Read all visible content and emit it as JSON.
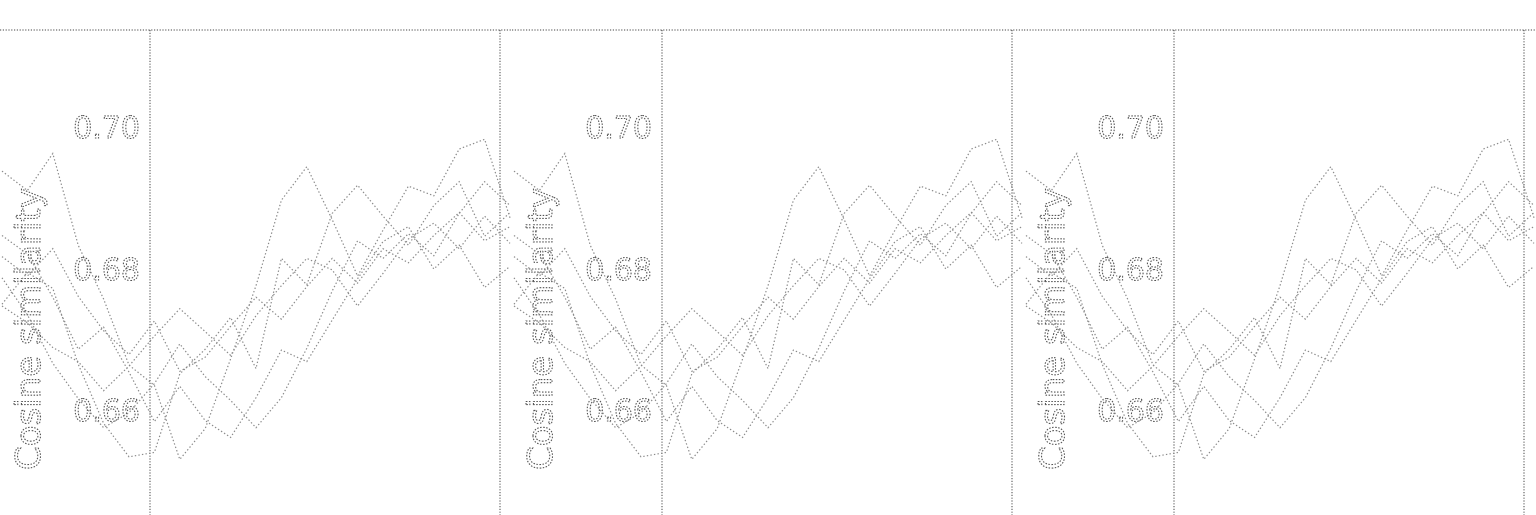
{
  "chart_data": [
    {
      "type": "line",
      "ylabel": "Cosine similarity",
      "yticks": [
        0.66,
        0.68,
        0.7
      ],
      "ylim": [
        0.6535,
        0.7085
      ],
      "grid": false,
      "legend": "none",
      "series_color": "#8a8a8a",
      "series": [
        {
          "values": [
            0.6925,
            0.6903,
            0.6945,
            0.6841,
            0.678,
            0.6705,
            0.6682,
            0.6598,
            0.6633,
            0.6712,
            0.6795,
            0.6892,
            0.693,
            0.687,
            0.6806,
            0.6858,
            0.6908,
            0.6897,
            0.695,
            0.6961,
            0.6872
          ]
        },
        {
          "values": [
            0.6774,
            0.681,
            0.6792,
            0.6706,
            0.6639,
            0.6601,
            0.6606,
            0.6695,
            0.6723,
            0.6759,
            0.6701,
            0.6826,
            0.6796,
            0.6877,
            0.6909,
            0.6874,
            0.6841,
            0.6886,
            0.6913,
            0.6851,
            0.6878
          ]
        },
        {
          "values": [
            0.6804,
            0.6762,
            0.6707,
            0.6667,
            0.6634,
            0.6651,
            0.6684,
            0.6729,
            0.6692,
            0.6665,
            0.6634,
            0.6668,
            0.6724,
            0.6789,
            0.6846,
            0.6826,
            0.6854,
            0.6829,
            0.6877,
            0.6913,
            0.6886
          ]
        },
        {
          "values": [
            0.6852,
            0.6831,
            0.6782,
            0.6723,
            0.6748,
            0.6697,
            0.6641,
            0.6681,
            0.6642,
            0.6623,
            0.6668,
            0.6722,
            0.6709,
            0.6756,
            0.6803,
            0.6845,
            0.6862,
            0.6814,
            0.6841,
            0.6793,
            0.6817
          ]
        },
        {
          "values": [
            0.6772,
            0.6753,
            0.6725,
            0.6709,
            0.6676,
            0.6704,
            0.6738,
            0.6769,
            0.6743,
            0.6716,
            0.6761,
            0.6795,
            0.6826,
            0.6813,
            0.6772,
            0.6809,
            0.6848,
            0.6866,
            0.6837,
            0.6874,
            0.6843
          ]
        },
        {
          "values": [
            0.6828,
            0.6806,
            0.6837,
            0.6783,
            0.6744,
            0.6717,
            0.6755,
            0.6698,
            0.6714,
            0.6749,
            0.6782,
            0.6757,
            0.6794,
            0.6826,
            0.6798,
            0.6837,
            0.6821,
            0.6852,
            0.6878,
            0.6846,
            0.6862
          ]
        }
      ]
    },
    {
      "type": "line",
      "ylabel": "Cosine similarity",
      "yticks": [
        0.66,
        0.68,
        0.7
      ],
      "ylim": [
        0.6535,
        0.7085
      ],
      "grid": false,
      "legend": "none",
      "series_color": "#8a8a8a",
      "series": [
        {
          "values": [
            0.6925,
            0.6903,
            0.6945,
            0.6841,
            0.678,
            0.6705,
            0.6682,
            0.6598,
            0.6633,
            0.6712,
            0.6795,
            0.6892,
            0.693,
            0.687,
            0.6806,
            0.6858,
            0.6908,
            0.6897,
            0.695,
            0.6961,
            0.6872
          ]
        },
        {
          "values": [
            0.6774,
            0.681,
            0.6792,
            0.6706,
            0.6639,
            0.6601,
            0.6606,
            0.6695,
            0.6723,
            0.6759,
            0.6701,
            0.6826,
            0.6796,
            0.6877,
            0.6909,
            0.6874,
            0.6841,
            0.6886,
            0.6913,
            0.6851,
            0.6878
          ]
        },
        {
          "values": [
            0.6804,
            0.6762,
            0.6707,
            0.6667,
            0.6634,
            0.6651,
            0.6684,
            0.6729,
            0.6692,
            0.6665,
            0.6634,
            0.6668,
            0.6724,
            0.6789,
            0.6846,
            0.6826,
            0.6854,
            0.6829,
            0.6877,
            0.6913,
            0.6886
          ]
        },
        {
          "values": [
            0.6852,
            0.6831,
            0.6782,
            0.6723,
            0.6748,
            0.6697,
            0.6641,
            0.6681,
            0.6642,
            0.6623,
            0.6668,
            0.6722,
            0.6709,
            0.6756,
            0.6803,
            0.6845,
            0.6862,
            0.6814,
            0.6841,
            0.6793,
            0.6817
          ]
        },
        {
          "values": [
            0.6772,
            0.6753,
            0.6725,
            0.6709,
            0.6676,
            0.6704,
            0.6738,
            0.6769,
            0.6743,
            0.6716,
            0.6761,
            0.6795,
            0.6826,
            0.6813,
            0.6772,
            0.6809,
            0.6848,
            0.6866,
            0.6837,
            0.6874,
            0.6843
          ]
        },
        {
          "values": [
            0.6828,
            0.6806,
            0.6837,
            0.6783,
            0.6744,
            0.6717,
            0.6755,
            0.6698,
            0.6714,
            0.6749,
            0.6782,
            0.6757,
            0.6794,
            0.6826,
            0.6798,
            0.6837,
            0.6821,
            0.6852,
            0.6878,
            0.6846,
            0.6862
          ]
        }
      ]
    },
    {
      "type": "line",
      "ylabel": "Cosine similarity",
      "yticks": [
        0.66,
        0.68,
        0.7
      ],
      "ylim": [
        0.6535,
        0.7085
      ],
      "grid": false,
      "legend": "none",
      "series_color": "#8a8a8a",
      "series": [
        {
          "values": [
            0.6925,
            0.6903,
            0.6945,
            0.6841,
            0.678,
            0.6705,
            0.6682,
            0.6598,
            0.6633,
            0.6712,
            0.6795,
            0.6892,
            0.693,
            0.687,
            0.6806,
            0.6858,
            0.6908,
            0.6897,
            0.695,
            0.6961,
            0.6872
          ]
        },
        {
          "values": [
            0.6774,
            0.681,
            0.6792,
            0.6706,
            0.6639,
            0.6601,
            0.6606,
            0.6695,
            0.6723,
            0.6759,
            0.6701,
            0.6826,
            0.6796,
            0.6877,
            0.6909,
            0.6874,
            0.6841,
            0.6886,
            0.6913,
            0.6851,
            0.6878
          ]
        },
        {
          "values": [
            0.6804,
            0.6762,
            0.6707,
            0.6667,
            0.6634,
            0.6651,
            0.6684,
            0.6729,
            0.6692,
            0.6665,
            0.6634,
            0.6668,
            0.6724,
            0.6789,
            0.6846,
            0.6826,
            0.6854,
            0.6829,
            0.6877,
            0.6913,
            0.6886
          ]
        },
        {
          "values": [
            0.6852,
            0.6831,
            0.6782,
            0.6723,
            0.6748,
            0.6697,
            0.6641,
            0.6681,
            0.6642,
            0.6623,
            0.6668,
            0.6722,
            0.6709,
            0.6756,
            0.6803,
            0.6845,
            0.6862,
            0.6814,
            0.6841,
            0.6793,
            0.6817
          ]
        },
        {
          "values": [
            0.6772,
            0.6753,
            0.6725,
            0.6709,
            0.6676,
            0.6704,
            0.6738,
            0.6769,
            0.6743,
            0.6716,
            0.6761,
            0.6795,
            0.6826,
            0.6813,
            0.6772,
            0.6809,
            0.6848,
            0.6866,
            0.6837,
            0.6874,
            0.6843
          ]
        },
        {
          "values": [
            0.6828,
            0.6806,
            0.6837,
            0.6783,
            0.6744,
            0.6717,
            0.6755,
            0.6698,
            0.6714,
            0.6749,
            0.6782,
            0.6757,
            0.6794,
            0.6826,
            0.6798,
            0.6837,
            0.6821,
            0.6852,
            0.6878,
            0.6846,
            0.6862
          ]
        }
      ]
    }
  ]
}
